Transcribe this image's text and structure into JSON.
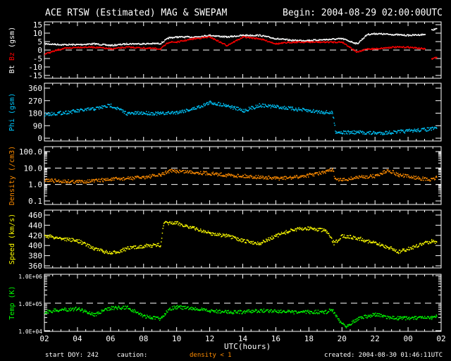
{
  "chart_data": {
    "type": "scatter",
    "title": "ACE RTSW (Estimated) MAG & SWEPAM",
    "begin": "Begin: 2004-08-29 02:00:00UTC",
    "xlabel": "UTC(hours)",
    "x_ticks": [
      "02",
      "04",
      "06",
      "08",
      "10",
      "12",
      "14",
      "16",
      "18",
      "20",
      "22",
      "00",
      "02"
    ],
    "x_range_hours": [
      0,
      24
    ],
    "footer": {
      "start": "start DOY: 242",
      "caution": "caution:",
      "density_note": "density < 1",
      "created": "created: 2004-08-30 01:46:11UTC"
    },
    "colors": {
      "bt": "#ffffff",
      "bz": "#ff0000",
      "phi": "#00c8ff",
      "density": "#ff8c00",
      "speed": "#ffff00",
      "temp": "#00ff00"
    },
    "panels": [
      {
        "id": "mag",
        "ylabel_parts": [
          "Bt",
          "Bz",
          "(gsm)"
        ],
        "scale": "linear",
        "ylim": [
          -15,
          15
        ],
        "ticks": [
          "15",
          "10",
          "5",
          "0",
          "-5",
          "-10",
          "-15"
        ],
        "tick_values": [
          15,
          10,
          5,
          0,
          -5,
          -10,
          -15
        ],
        "dashed": [
          0
        ],
        "series": [
          {
            "name": "Bt",
            "color": "#ffffff",
            "x": [
              0,
              1,
              2,
              3,
              4,
              5,
              6,
              7,
              7.5,
              8,
              9,
              10,
              11,
              12,
              13,
              14,
              15,
              16,
              17,
              18,
              18.9,
              19.5,
              20,
              21,
              22,
              23
            ],
            "y": [
              4,
              3.5,
              3.5,
              4,
              3,
              4,
              4,
              4.2,
              7.5,
              8,
              8,
              9,
              8,
              9,
              9,
              7,
              6,
              6,
              6.5,
              7,
              4,
              9.5,
              10,
              9.5,
              9,
              9.5
            ]
          },
          {
            "name": "Bz",
            "color": "#ff0000",
            "x": [
              0,
              1,
              2,
              3,
              4,
              5,
              6,
              7,
              7.5,
              8,
              9,
              10,
              11,
              12,
              13,
              14,
              15,
              16,
              17,
              18,
              18.9,
              19.5,
              20,
              21,
              22,
              23
            ],
            "y": [
              -2,
              1,
              2,
              2,
              1,
              2,
              1.5,
              1,
              5,
              5,
              7,
              8,
              3,
              8,
              7,
              4,
              5,
              5,
              5,
              5,
              -1,
              1,
              1,
              2,
              2,
              1
            ]
          },
          {
            "name": "Bt-late",
            "color": "#ffffff",
            "x": [
              23.4,
              23.7
            ],
            "y": [
              12,
              13
            ]
          },
          {
            "name": "Bz-late",
            "color": "#ff0000",
            "x": [
              23.4,
              23.7
            ],
            "y": [
              -5,
              -4
            ]
          }
        ]
      },
      {
        "id": "phi",
        "ylabel_parts": [
          "Phi",
          "(gsm)"
        ],
        "scale": "linear",
        "ylim": [
          0,
          360
        ],
        "ticks": [
          "360",
          "270",
          "180",
          "90",
          "0"
        ],
        "tick_values": [
          360,
          270,
          180,
          90,
          0
        ],
        "dashed": [],
        "series": [
          {
            "name": "Phi",
            "color": "#00c8ff",
            "x": [
              0,
              1,
              2,
              3,
              4,
              5,
              6,
              7,
              8,
              9,
              10,
              11,
              12,
              13,
              14,
              15,
              16,
              17,
              17.4,
              17.6,
              18,
              19,
              20,
              21,
              23.4,
              23.7
            ],
            "y": [
              175,
              185,
              200,
              215,
              240,
              180,
              185,
              180,
              190,
              215,
              260,
              240,
              200,
              240,
              230,
              215,
              200,
              190,
              185,
              50,
              45,
              45,
              40,
              45,
              70,
              75
            ]
          }
        ]
      },
      {
        "id": "density",
        "ylabel_parts": [
          "Density",
          "(/cm3)"
        ],
        "scale": "log",
        "ylim": [
          0.1,
          100
        ],
        "ticks": [
          "100.0",
          "10.0",
          "1.0",
          "0.1"
        ],
        "tick_values": [
          100,
          10,
          1,
          0.1
        ],
        "dashed": [
          10,
          1
        ],
        "series": [
          {
            "name": "Density",
            "color": "#ff8c00",
            "x": [
              0,
              1,
              2,
              3,
              4,
              5,
              6,
              7,
              7.5,
              8,
              9,
              10,
              11,
              12,
              13,
              14,
              15,
              16,
              17,
              17.4,
              17.6,
              18,
              19,
              20,
              20.8,
              21.4,
              23.4,
              23.7
            ],
            "y": [
              2,
              1.7,
              1.6,
              1.8,
              2.2,
              2.5,
              3,
              4,
              7,
              7,
              6,
              5,
              4,
              3.5,
              3,
              2.5,
              2.8,
              4,
              6,
              9,
              2,
              2,
              3,
              3.5,
              8,
              4,
              2,
              3
            ]
          }
        ]
      },
      {
        "id": "speed",
        "ylabel_parts": [
          "Speed",
          "(km/s)"
        ],
        "scale": "linear",
        "ylim": [
          360,
          460
        ],
        "ticks": [
          "460",
          "440",
          "420",
          "400",
          "380",
          "360"
        ],
        "tick_values": [
          460,
          440,
          420,
          400,
          380,
          360
        ],
        "dashed": [],
        "series": [
          {
            "name": "Speed",
            "color": "#ffff00",
            "x": [
              0,
              1,
              2,
              3,
              3.5,
              4,
              5,
              6,
              7,
              7.2,
              8,
              9,
              10,
              11,
              12,
              13,
              14,
              15,
              16,
              17,
              17.5,
              18,
              19,
              20,
              21,
              21.4,
              23.4,
              23.7
            ],
            "y": [
              420,
              415,
              410,
              395,
              390,
              385,
              395,
              400,
              402,
              445,
              445,
              435,
              425,
              420,
              410,
              405,
              420,
              432,
              435,
              430,
              405,
              420,
              415,
              405,
              395,
              388,
              410,
              408
            ]
          }
        ]
      },
      {
        "id": "temp",
        "ylabel_parts": [
          "Temp",
          "(K)"
        ],
        "scale": "log",
        "ylim": [
          10000,
          1000000
        ],
        "ticks": [
          "1.0E+06",
          "1.0E+05",
          "1.0E+04"
        ],
        "tick_values": [
          1000000,
          100000,
          10000
        ],
        "dashed": [
          100000
        ],
        "series": [
          {
            "name": "Temp",
            "color": "#00ff00",
            "x": [
              0,
              1,
              2,
              3,
              4,
              5,
              6,
              7,
              7.5,
              8,
              9,
              10,
              11,
              12,
              13,
              14,
              15,
              16,
              17,
              17.4,
              17.8,
              18.2,
              19,
              20,
              21,
              21.4,
              23.4,
              23.7
            ],
            "y": [
              50000,
              60000,
              65000,
              40000,
              70000,
              72000,
              35000,
              28000,
              65000,
              75000,
              65000,
              55000,
              50000,
              50000,
              55000,
              55000,
              48000,
              50000,
              50000,
              60000,
              25000,
              15000,
              30000,
              40000,
              30000,
              30000,
              30000,
              35000
            ]
          }
        ]
      }
    ]
  }
}
